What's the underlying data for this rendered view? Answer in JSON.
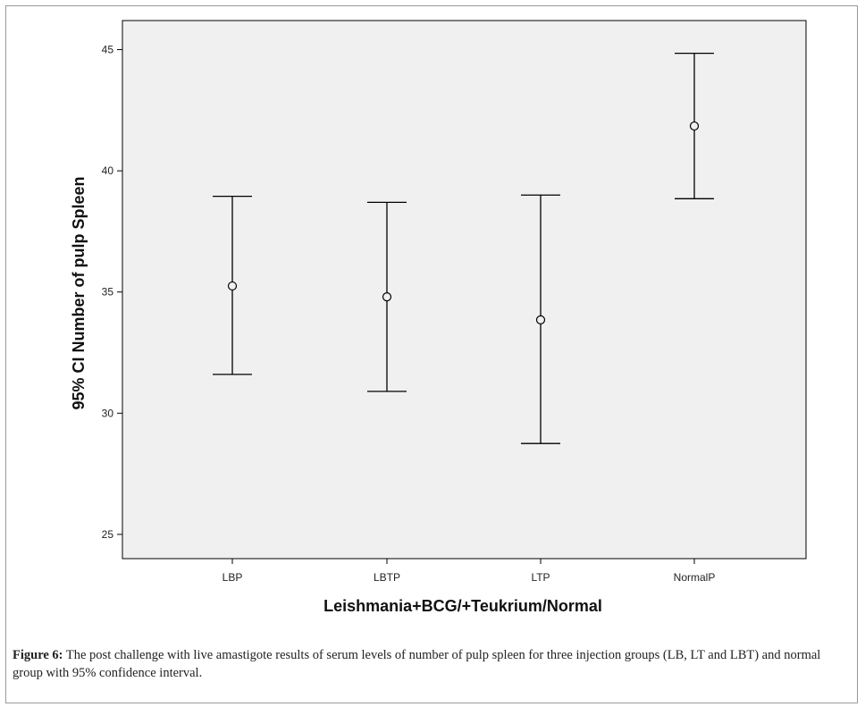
{
  "chart_data": {
    "type": "errorbar",
    "categories": [
      "LBP",
      "LBTP",
      "LTP",
      "NormalP"
    ],
    "means": [
      35.25,
      34.8,
      33.85,
      41.85
    ],
    "lower": [
      31.6,
      30.9,
      28.75,
      38.85
    ],
    "upper": [
      38.95,
      38.7,
      39.0,
      44.85
    ],
    "ylim": [
      24,
      46.2
    ],
    "yticks": [
      25,
      30,
      35,
      40,
      45
    ],
    "ytick_labels": [
      "25",
      "30",
      "35",
      "40",
      "45"
    ],
    "xlabel": "Leishmania+BCG/+Teukrium/Normal",
    "ylabel": "95% CI Number of pulp Spleen",
    "grid": false,
    "background": "#f0f0f0",
    "line_color": "#000000"
  },
  "caption": {
    "label": "Figure 6:",
    "text": "The post challenge with live amastigote results of serum levels of number of pulp spleen for three injection groups (LB, LT and LBT) and normal group with 95% confidence interval."
  }
}
